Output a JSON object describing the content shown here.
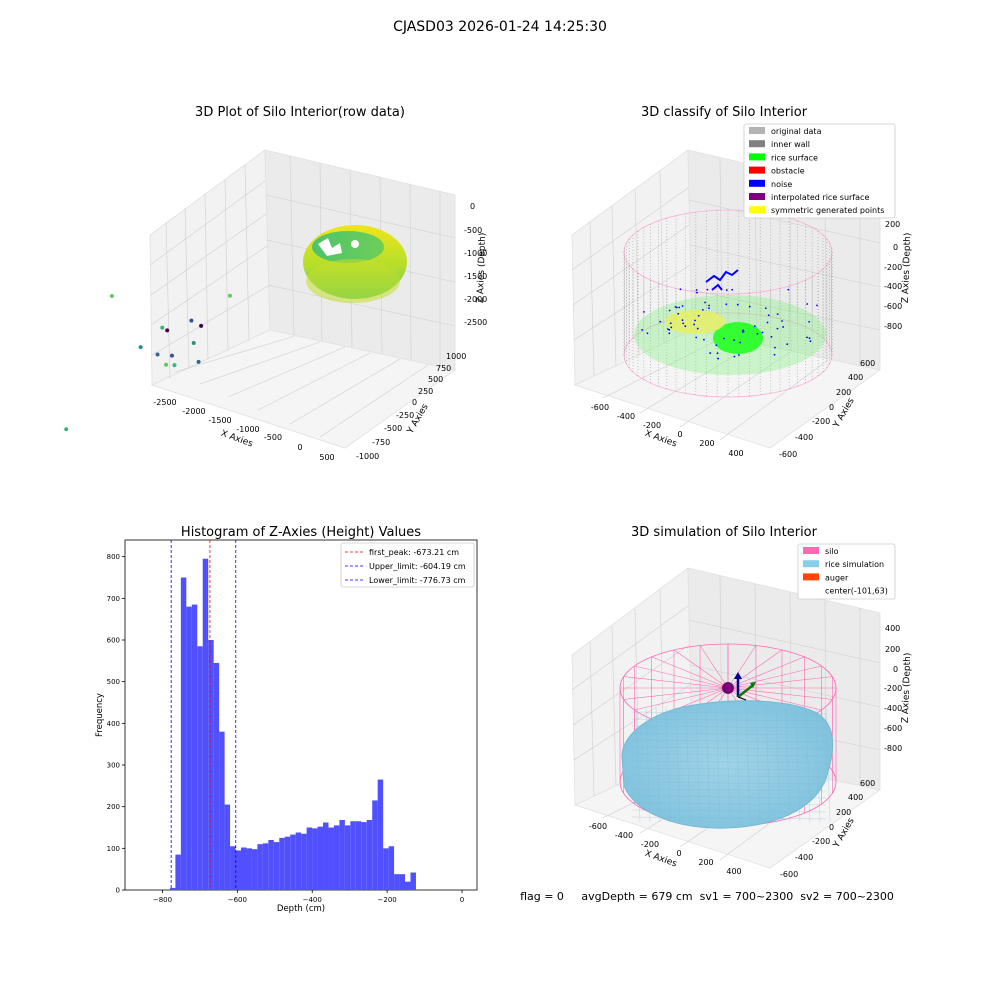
{
  "figure": {
    "suptitle": "CJASD03 2026-01-24 14:25:30",
    "status_line": "flag = 0     avgDepth = 679 cm  sv1 = 700~2300  sv2 = 700~2300"
  },
  "chart_data": [
    {
      "type": "scatter",
      "dimensions": 3,
      "title": "3D Plot of Silo Interior(row data)",
      "xlabel": "X Axies",
      "ylabel": "Y Axies",
      "zlabel": "Z Axies (Depth)",
      "x_ticks": [
        "-2500",
        "-2000",
        "-1500",
        "-1000",
        "-500",
        "0",
        "500"
      ],
      "y_ticks": [
        "-1000",
        "-750",
        "-500",
        "-250",
        "0",
        "250",
        "500",
        "750",
        "1000"
      ],
      "z_ticks": [
        "0",
        "-500",
        "-1000",
        "-1500",
        "-2000",
        "-2500"
      ],
      "colormap": "viridis",
      "outliers": [
        {
          "x": -2400,
          "y": -600,
          "z": -700
        },
        {
          "x": -2350,
          "y": -200,
          "z": -1500
        },
        {
          "x": -2300,
          "y": -400,
          "z": -1650
        },
        {
          "x": -2200,
          "y": -300,
          "z": -1850
        },
        {
          "x": -2150,
          "y": -200,
          "z": -1950
        },
        {
          "x": -2000,
          "y": -300,
          "z": -1500
        },
        {
          "x": -1900,
          "y": -350,
          "z": -2000
        },
        {
          "x": -1850,
          "y": -300,
          "z": -2050
        },
        {
          "x": -1700,
          "y": -200,
          "z": -1800
        },
        {
          "x": -1600,
          "y": -200,
          "z": -2100
        },
        {
          "x": -1500,
          "y": -300,
          "z": -1400
        },
        {
          "x": -1300,
          "y": -300,
          "z": -1500
        },
        {
          "x": -1200,
          "y": -100,
          "z": -1200
        },
        {
          "x": -2600,
          "y": -900,
          "z": -2500
        }
      ]
    },
    {
      "type": "scatter",
      "dimensions": 3,
      "title": "3D classify of Silo Interior",
      "xlabel": "X Axies",
      "ylabel": "Y Axies",
      "zlabel": "Z Axies (Depth)",
      "x_ticks": [
        "-600",
        "-400",
        "-200",
        "0",
        "200",
        "400"
      ],
      "y_ticks": [
        "-600",
        "-400",
        "-200",
        "0",
        "200",
        "400",
        "600"
      ],
      "z_ticks": [
        "200",
        "0",
        "-200",
        "-400",
        "-600",
        "-800"
      ],
      "legend_placement": "top-right",
      "legend": [
        {
          "label": "original data",
          "color": "#b3b3b3"
        },
        {
          "label": "inner wall",
          "color": "#808080"
        },
        {
          "label": "rice surface",
          "color": "#00ff00"
        },
        {
          "label": "obstacle",
          "color": "#ff0000"
        },
        {
          "label": "noise",
          "color": "#0000ff"
        },
        {
          "label": "interpolated rice surface",
          "color": "#800080"
        },
        {
          "label": "symmetric generated points",
          "color": "#ffff00"
        }
      ]
    },
    {
      "type": "bar",
      "subtype": "histogram",
      "title": "Histogram of Z-Axies (Height) Values",
      "xlabel": "Depth (cm)",
      "ylabel": "Frequency",
      "xlim": [
        -900,
        40
      ],
      "ylim": [
        0,
        840
      ],
      "x_ticks": [
        -800,
        -600,
        -400,
        -200,
        0
      ],
      "y_ticks": [
        0,
        100,
        200,
        300,
        400,
        500,
        600,
        700,
        800
      ],
      "bar_color": "#5050ff",
      "bin_start": -780,
      "bin_width": 14.6,
      "values": [
        5,
        85,
        750,
        680,
        685,
        585,
        795,
        600,
        545,
        380,
        205,
        105,
        95,
        102,
        100,
        98,
        110,
        112,
        120,
        115,
        125,
        128,
        133,
        138,
        135,
        150,
        148,
        152,
        162,
        150,
        155,
        168,
        155,
        165,
        165,
        163,
        168,
        215,
        265,
        100,
        105,
        38,
        38,
        20,
        42
      ],
      "lines": [
        {
          "label": "first_peak: -673.21 cm",
          "x": -673.21,
          "color": "#ff0000"
        },
        {
          "label": "Upper_limit: -604.19 cm",
          "x": -604.19,
          "color": "#0000ff"
        },
        {
          "label": "Lower_limit: -776.73 cm",
          "x": -776.73,
          "color": "#0000ff"
        }
      ],
      "legend_placement": "top-right"
    },
    {
      "type": "scatter",
      "dimensions": 3,
      "title": "3D simulation of Silo Interior",
      "xlabel": "X Axies",
      "ylabel": "Y Axies",
      "zlabel": "Z Axies (Depth)",
      "x_ticks": [
        "-600",
        "-400",
        "-200",
        "0",
        "200",
        "400"
      ],
      "y_ticks": [
        "-600",
        "-400",
        "-200",
        "0",
        "200",
        "400",
        "600"
      ],
      "z_ticks": [
        "400",
        "200",
        "0",
        "-200",
        "-400",
        "-600",
        "-800"
      ],
      "legend_placement": "top-right",
      "legend": [
        {
          "label": "silo",
          "color": "#ff69b4"
        },
        {
          "label": "rice simulation",
          "color": "#87ceeb"
        },
        {
          "label": "auger",
          "color": "#ff4500"
        },
        {
          "label": "center(-101,63)",
          "color": ""
        }
      ]
    }
  ]
}
